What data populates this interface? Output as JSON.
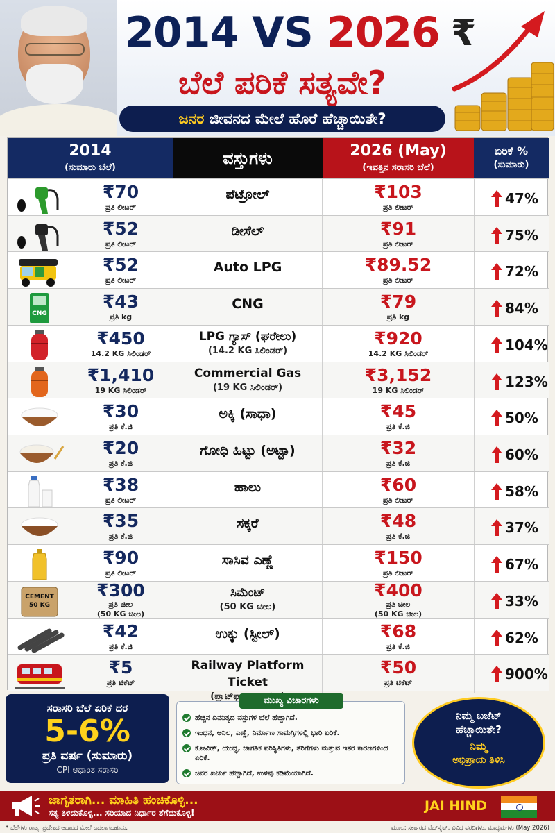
{
  "header": {
    "year_old": "2014",
    "vs": "VS",
    "year_new": "2026",
    "rupee_symbol": "₹",
    "title_line2": "ಬೆಲೆ ಪರಿಕೆ ಸತ್ಯವೇ?",
    "subtitle_highlight": "ಜನರ",
    "subtitle_rest": " ಜೀವನದ ಮೇಲೆ ಹೊರೆ ಹೆಚ್ಚಾಯಿತೇ?"
  },
  "table": {
    "headers": {
      "col_2014": "2014",
      "col_2014_sub": "(ಸುಮಾರು ಬೆಲೆ)",
      "col_item": "ವಸ್ತುಗಳು",
      "col_2026": "2026 (May)",
      "col_2026_sub": "(ಇವತ್ತಿನ ಸರಾಸರಿ ಬೆಲೆ)",
      "col_inc": "ಏರಿಕೆ %",
      "col_inc_sub": "(ಸುಮಾರು)"
    },
    "rows": [
      {
        "icon": "petrol-pump-icon",
        "old_price": "₹70",
        "old_unit": "ಪ್ರತಿ ಲೀಟರ್",
        "item": "ಪೆಟ್ರೋಲ್",
        "item_sub": "",
        "new_price": "₹103",
        "new_unit": "ಪ್ರತಿ ಲೀಟರ್",
        "new_unit2": "",
        "old_unit2": "",
        "increase": "47%"
      },
      {
        "icon": "diesel-pump-icon",
        "old_price": "₹52",
        "old_unit": "ಪ್ರತಿ ಲೀಟರ್",
        "item": "ಡೀಸೆಲ್",
        "item_sub": "",
        "new_price": "₹91",
        "new_unit": "ಪ್ರತಿ ಲೀಟರ್",
        "new_unit2": "",
        "old_unit2": "",
        "increase": "75%"
      },
      {
        "icon": "auto-rickshaw-icon",
        "old_price": "₹52",
        "old_unit": "ಪ್ರತಿ ಲೀಟರ್",
        "item": "Auto LPG",
        "item_sub": "",
        "new_price": "₹89.52",
        "new_unit": "ಪ್ರತಿ ಲೀಟರ್",
        "new_unit2": "",
        "old_unit2": "",
        "increase": "72%"
      },
      {
        "icon": "cng-icon",
        "old_price": "₹43",
        "old_unit": "ಪ್ರತಿ kg",
        "item": "CNG",
        "item_sub": "",
        "new_price": "₹79",
        "new_unit": "ಪ್ರತಿ kg",
        "new_unit2": "",
        "old_unit2": "",
        "increase": "84%"
      },
      {
        "icon": "gas-cylinder-red-icon",
        "old_price": "₹450",
        "old_unit": "14.2 KG ಸಿಲಿಂಡರ್",
        "item": "LPG ಗ್ಯಾಸ್ (ಘರೇಲು)",
        "item_sub": "(14.2 KG ಸಿಲಿಂಡರ್)",
        "new_price": "₹920",
        "new_unit": "14.2 KG ಸಿಲಿಂಡರ್",
        "new_unit2": "",
        "old_unit2": "",
        "increase": "104%"
      },
      {
        "icon": "gas-cylinder-orange-icon",
        "old_price": "₹1,410",
        "old_unit": "19 KG ಸಿಲಿಂಡರ್",
        "item": "Commercial Gas",
        "item_sub": "(19 KG ಸಿಲಿಂಡರ್)",
        "new_price": "₹3,152",
        "new_unit": "19 KG ಸಿಲಿಂಡರ್",
        "new_unit2": "",
        "old_unit2": "",
        "increase": "123%"
      },
      {
        "icon": "rice-bowl-icon",
        "old_price": "₹30",
        "old_unit": "ಪ್ರತಿ ಕೆ.ಜಿ",
        "item": "ಅಕ್ಕಿ (ಸಾಧಾ)",
        "item_sub": "",
        "new_price": "₹45",
        "new_unit": "ಪ್ರತಿ ಕೆ.ಜಿ",
        "new_unit2": "",
        "old_unit2": "",
        "increase": "50%"
      },
      {
        "icon": "flour-bowl-icon",
        "old_price": "₹20",
        "old_unit": "ಪ್ರತಿ ಕೆ.ಜಿ",
        "item": "ಗೋಧಿ ಹಿಟ್ಟು (ಅಟ್ಟಾ)",
        "item_sub": "",
        "new_price": "₹32",
        "new_unit": "ಪ್ರತಿ ಕೆ.ಜಿ",
        "new_unit2": "",
        "old_unit2": "",
        "increase": "60%"
      },
      {
        "icon": "milk-icon",
        "old_price": "₹38",
        "old_unit": "ಪ್ರತಿ ಲೀಟರ್",
        "item": "ಹಾಲು",
        "item_sub": "",
        "new_price": "₹60",
        "new_unit": "ಪ್ರತಿ ಲೀಟರ್",
        "new_unit2": "",
        "old_unit2": "",
        "increase": "58%"
      },
      {
        "icon": "sugar-bowl-icon",
        "old_price": "₹35",
        "old_unit": "ಪ್ರತಿ ಕೆ.ಜಿ",
        "item": "ಸಕ್ಕರೆ",
        "item_sub": "",
        "new_price": "₹48",
        "new_unit": "ಪ್ರತಿ ಕೆ.ಜಿ",
        "new_unit2": "",
        "old_unit2": "",
        "increase": "37%"
      },
      {
        "icon": "oil-bottle-icon",
        "old_price": "₹90",
        "old_unit": "ಪ್ರತಿ ಲೀಟರ್",
        "item": "ಸಾಸಿವ ಎಣ್ಣೆ",
        "item_sub": "",
        "new_price": "₹150",
        "new_unit": "ಪ್ರತಿ ಲೀಟರ್",
        "new_unit2": "",
        "old_unit2": "",
        "increase": "67%"
      },
      {
        "icon": "cement-bag-icon",
        "icon_text": "CEMENT\n50 KG",
        "old_price": "₹300",
        "old_unit": "ಪ್ರತಿ ಚೀಲ",
        "old_unit2": "(50 KG ಚೀಲ)",
        "item": "ಸಿಮೆಂಟ್",
        "item_sub": "(50 KG ಚೀಲ)",
        "new_price": "₹400",
        "new_unit": "ಪ್ರತಿ ಚೀಲ",
        "new_unit2": "(50 KG ಚೀಲ)",
        "increase": "33%"
      },
      {
        "icon": "steel-rods-icon",
        "old_price": "₹42",
        "old_unit": "ಪ್ರತಿ ಕೆ.ಜಿ",
        "item": "ಉಕ್ಕು (ಸ್ಟೀಲ್)",
        "item_sub": "",
        "new_price": "₹68",
        "new_unit": "ಪ್ರತಿ ಕೆ.ಜಿ",
        "new_unit2": "",
        "old_unit2": "",
        "increase": "62%"
      },
      {
        "icon": "train-icon",
        "old_price": "₹5",
        "old_unit": "ಪ್ರತಿ ಟಿಕೆಟ್",
        "item": "Railway Platform Ticket",
        "item_sub": "(ಪ್ಲಾಟ್‌ಫಾರ್ಮ್ ಟಿಕೆಟ್)",
        "new_price": "₹50",
        "new_unit": "ಪ್ರತಿ ಟಿಕೆಟ್",
        "new_unit2": "",
        "old_unit2": "",
        "increase": "900%"
      }
    ]
  },
  "cng_icon_label": "CNG",
  "average": {
    "line1": "ಸರಾಸರಿ ಬೆಲೆ ಏರಿಕೆ ದರ",
    "value": "5-6%",
    "line3": "ಪ್ರತಿ ವರ್ಷ (ಸುಮಾರು)",
    "line4": "CPI ಆಧಾರಿತ ಸರಾಸರಿ"
  },
  "points": {
    "title": "ಮುಖ್ಯ ವಿಚಾರಗಳು",
    "items": [
      "ಹೆಚ್ಚಿನ ದಿನನಿತ್ಯದ ವಸ್ತುಗಳ ಬೆಲೆ ಹೆಚ್ಚಾಗಿದೆ.",
      "ಇಂಧನ, ಅನಿಲ, ಎಣ್ಣೆ, ನಿರ್ಮಾಣ ಸಾಮಗ್ರಿಗಳಲ್ಲಿ ಭಾರಿ ಏರಿಕೆ.",
      "ಕೋವಿಡ್, ಯುದ್ಧ, ಜಾಗತಿಕ ಪರಿಸ್ಥಿತಿಗಳು, ತೆರಿಗೆಗಳು ಮತ್ತುವ ಇತರ ಕಾರಣಗಳಿಂದ ಏರಿಕೆ.",
      "ಜನರ ಖರ್ಚು ಹೆಚ್ಚಾಗಿದೆ, ಉಳಿವು ಕಡಿಮೆಯಾಗಿದೆ."
    ]
  },
  "budget": {
    "line1": "ನಿಮ್ಮ ಬಜೆಟ್",
    "line2": "ಹೆಚ್ಚಾಯಿತೇ?",
    "line3": "ನಿಮ್ಮ",
    "line4": "ಅಭಿಪ್ರಾಯ ತಿಳಿಸಿ"
  },
  "footer": {
    "line1": "ಜಾಗೃತರಾಗಿ... ಮಾಹಿತಿ ಹಂಚಿಕೊಳ್ಳಿ...",
    "line2": "ಸತ್ಯ ತಿಳಿದುಕೊಳ್ಳಿ... ಸರಿಯಾದ ನಿರ್ಧಾರ ತೆಗೆದುಕೊಳ್ಳಿ!",
    "jai_hind": "JAI HIND",
    "note_left": "* ಬೆಲೆಗಳು ರಾಜ್ಯ, ಪ್ರದೇಶದ ಆಧಾರದ ಮೇಲೆ ಬದಲಾಗಬಹುದು.",
    "note_right": "ಮೂಲ: ಸರ್ಕಾರದ ವೆಬ್‌ಸೈಟ್, ವಿವಿಧ ವರದಿಗಳು, ಮಾಧ್ಯಮಗಳು (May 2026)"
  },
  "colors": {
    "navy": "#0d1e4f",
    "red": "#c8161d",
    "gold": "#ffcc22",
    "footer_red": "#9c1016"
  }
}
